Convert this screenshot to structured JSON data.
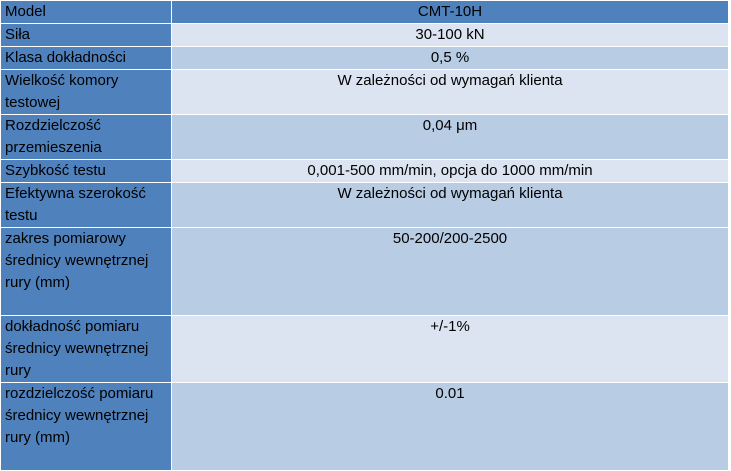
{
  "table": {
    "header": {
      "label": "Model",
      "value": "CMT-10H"
    },
    "rows": [
      {
        "label": "Siła",
        "value": "30-100 kN"
      },
      {
        "label": "Klasa dokładności",
        "value": "0,5 %"
      },
      {
        "label": "Wielkość komory testowej",
        "value": "W zależności od wymagań klienta"
      },
      {
        "label": "Rozdzielczość przemieszenia",
        "value": "0,04 μm"
      },
      {
        "label": "Szybkość testu",
        "value": "0,001-500 mm/min, opcja do 1000 mm/min"
      },
      {
        "label": "Efektywna szerokość testu",
        "value": "W zależności od wymagań klienta"
      },
      {
        "label": "zakres pomiarowy średnicy wewnętrznej rury (mm)",
        "value": "50-200/200-2500"
      },
      {
        "label": "dokładność pomiaru średnicy wewnętrznej rury",
        "value": "+/-1%"
      },
      {
        "label": "rozdzielczość pomiaru średnicy wewnętrznej rury (mm)",
        "value": "0.01"
      }
    ]
  },
  "colors": {
    "header_bg": "#4f81bd",
    "label_bg": "#4f81bd",
    "row_light": "#dbe4f0",
    "row_dark": "#b8cce4"
  }
}
